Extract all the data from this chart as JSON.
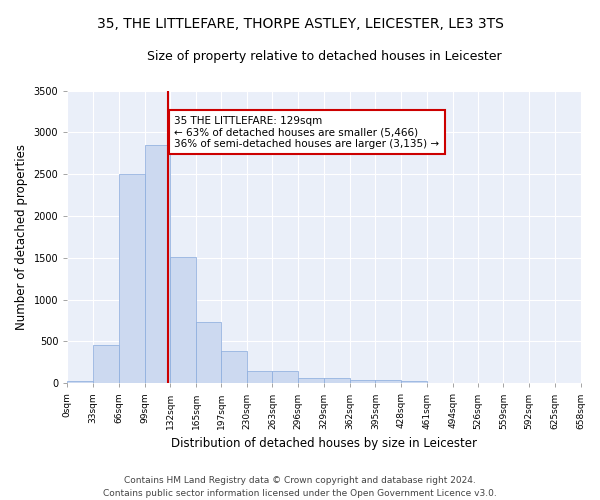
{
  "title1": "35, THE LITTLEFARE, THORPE ASTLEY, LEICESTER, LE3 3TS",
  "title2": "Size of property relative to detached houses in Leicester",
  "xlabel": "Distribution of detached houses by size in Leicester",
  "ylabel": "Number of detached properties",
  "bar_edges": [
    0,
    33,
    66,
    99,
    132,
    165,
    197,
    230,
    263,
    296,
    329,
    362,
    395,
    428,
    461,
    494,
    526,
    559,
    592,
    625,
    658
  ],
  "bar_heights": [
    30,
    460,
    2500,
    2850,
    1510,
    730,
    390,
    145,
    145,
    60,
    60,
    45,
    45,
    30,
    0,
    0,
    0,
    0,
    0,
    0
  ],
  "bar_color": "#ccd9f0",
  "bar_edgecolor": "#88aadd",
  "vline_x": 129,
  "vline_color": "#cc0000",
  "annotation_text": "35 THE LITTLEFARE: 129sqm\n← 63% of detached houses are smaller (5,466)\n36% of semi-detached houses are larger (3,135) →",
  "annotation_box_color": "white",
  "annotation_box_edgecolor": "#cc0000",
  "ylim": [
    0,
    3500
  ],
  "xlim": [
    0,
    658
  ],
  "tick_labels": [
    "0sqm",
    "33sqm",
    "66sqm",
    "99sqm",
    "132sqm",
    "165sqm",
    "197sqm",
    "230sqm",
    "263sqm",
    "296sqm",
    "329sqm",
    "362sqm",
    "395sqm",
    "428sqm",
    "461sqm",
    "494sqm",
    "526sqm",
    "559sqm",
    "592sqm",
    "625sqm",
    "658sqm"
  ],
  "tick_positions": [
    0,
    33,
    66,
    99,
    132,
    165,
    197,
    230,
    263,
    296,
    329,
    362,
    395,
    428,
    461,
    494,
    526,
    559,
    592,
    625,
    658
  ],
  "ytick_positions": [
    0,
    500,
    1000,
    1500,
    2000,
    2500,
    3000,
    3500
  ],
  "footnote": "Contains HM Land Registry data © Crown copyright and database right 2024.\nContains public sector information licensed under the Open Government Licence v3.0.",
  "bg_color": "#eaeff9",
  "grid_color": "#ffffff",
  "title1_fontsize": 10,
  "title2_fontsize": 9,
  "xlabel_fontsize": 8.5,
  "ylabel_fontsize": 8.5,
  "tick_fontsize": 6.5,
  "annotation_fontsize": 7.5,
  "footnote_fontsize": 6.5
}
